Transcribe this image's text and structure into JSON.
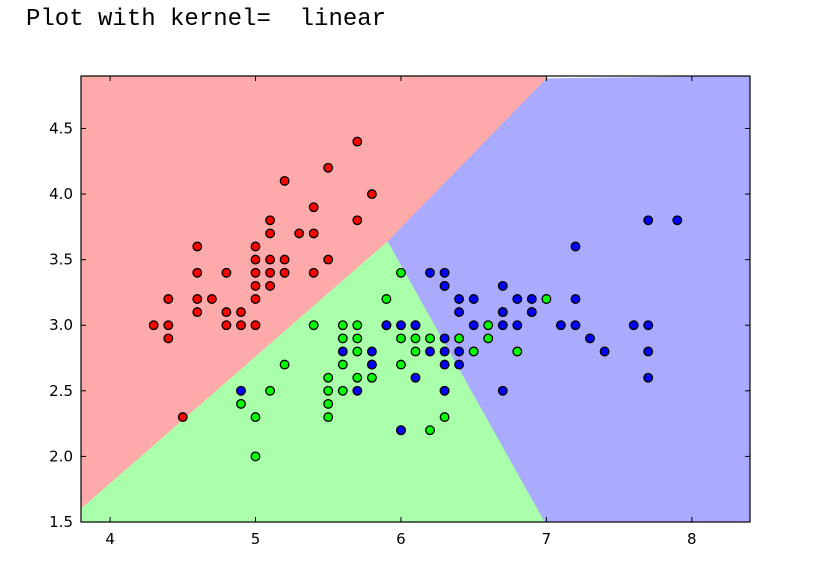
{
  "heading": "Plot with kernel=  linear",
  "chart_data": {
    "type": "scatter",
    "title": "",
    "xlabel": "",
    "ylabel": "",
    "xlim": [
      3.8,
      8.4
    ],
    "ylim": [
      1.5,
      4.9
    ],
    "xticks": [
      4,
      5,
      6,
      7,
      8
    ],
    "yticks": [
      1.5,
      2.0,
      2.5,
      3.0,
      3.5,
      4.0,
      4.5
    ],
    "xtick_labels": [
      "4",
      "5",
      "6",
      "7",
      "8"
    ],
    "ytick_labels": [
      "1.5",
      "2.0",
      "2.5",
      "3.0",
      "3.5",
      "4.0",
      "4.5"
    ],
    "grid": false,
    "legend": "none",
    "decision_regions": [
      {
        "class": 0,
        "color": "#ffaaaa"
      },
      {
        "class": 1,
        "color": "#aaffaa"
      },
      {
        "class": 2,
        "color": "#aaaaff"
      }
    ],
    "decision_boundaries": {
      "red_green": [
        [
          3.8,
          1.6
        ],
        [
          5.91,
          3.64
        ]
      ],
      "green_blue": [
        [
          5.91,
          3.64
        ],
        [
          6.99,
          1.5
        ]
      ],
      "red_blue": [
        [
          5.91,
          3.64
        ],
        [
          7.0,
          4.88
        ]
      ]
    },
    "series": [
      {
        "color": "#ff0000",
        "points": [
          [
            4.3,
            3.0
          ],
          [
            4.4,
            2.9
          ],
          [
            4.4,
            3.0
          ],
          [
            4.4,
            3.2
          ],
          [
            4.5,
            2.3
          ],
          [
            4.6,
            3.1
          ],
          [
            4.6,
            3.2
          ],
          [
            4.6,
            3.4
          ],
          [
            4.6,
            3.6
          ],
          [
            4.7,
            3.2
          ],
          [
            4.8,
            3.0
          ],
          [
            4.8,
            3.1
          ],
          [
            4.8,
            3.4
          ],
          [
            4.9,
            3.0
          ],
          [
            4.9,
            3.1
          ],
          [
            5.0,
            3.0
          ],
          [
            5.0,
            3.2
          ],
          [
            5.0,
            3.3
          ],
          [
            5.0,
            3.4
          ],
          [
            5.0,
            3.5
          ],
          [
            5.0,
            3.6
          ],
          [
            5.1,
            3.3
          ],
          [
            5.1,
            3.4
          ],
          [
            5.1,
            3.5
          ],
          [
            5.1,
            3.7
          ],
          [
            5.1,
            3.8
          ],
          [
            5.2,
            3.4
          ],
          [
            5.2,
            3.5
          ],
          [
            5.2,
            4.1
          ],
          [
            5.3,
            3.7
          ],
          [
            5.4,
            3.4
          ],
          [
            5.4,
            3.7
          ],
          [
            5.4,
            3.9
          ],
          [
            5.5,
            3.5
          ],
          [
            5.5,
            4.2
          ],
          [
            5.7,
            3.8
          ],
          [
            5.7,
            4.4
          ],
          [
            5.8,
            4.0
          ]
        ]
      },
      {
        "color": "#00ff00",
        "points": [
          [
            4.9,
            2.4
          ],
          [
            5.0,
            2.0
          ],
          [
            5.0,
            2.3
          ],
          [
            5.1,
            2.5
          ],
          [
            5.2,
            2.7
          ],
          [
            5.4,
            3.0
          ],
          [
            5.5,
            2.3
          ],
          [
            5.5,
            2.4
          ],
          [
            5.5,
            2.5
          ],
          [
            5.5,
            2.6
          ],
          [
            5.6,
            2.5
          ],
          [
            5.6,
            2.7
          ],
          [
            5.6,
            2.9
          ],
          [
            5.6,
            3.0
          ],
          [
            5.7,
            2.6
          ],
          [
            5.7,
            2.8
          ],
          [
            5.7,
            2.9
          ],
          [
            5.7,
            3.0
          ],
          [
            5.8,
            2.6
          ],
          [
            5.8,
            2.7
          ],
          [
            5.9,
            3.0
          ],
          [
            5.9,
            3.2
          ],
          [
            6.0,
            2.2
          ],
          [
            6.0,
            2.7
          ],
          [
            6.0,
            2.9
          ],
          [
            6.0,
            3.4
          ],
          [
            6.1,
            2.8
          ],
          [
            6.1,
            2.9
          ],
          [
            6.1,
            3.0
          ],
          [
            6.2,
            2.2
          ],
          [
            6.2,
            2.9
          ],
          [
            6.3,
            2.3
          ],
          [
            6.3,
            2.5
          ],
          [
            6.3,
            3.3
          ],
          [
            6.4,
            2.9
          ],
          [
            6.5,
            2.8
          ],
          [
            6.6,
            2.9
          ],
          [
            6.6,
            3.0
          ],
          [
            6.7,
            3.1
          ],
          [
            6.8,
            2.8
          ],
          [
            6.9,
            3.1
          ],
          [
            7.0,
            3.2
          ]
        ]
      },
      {
        "color": "#0000ff",
        "points": [
          [
            4.9,
            2.5
          ],
          [
            5.6,
            2.8
          ],
          [
            5.7,
            2.5
          ],
          [
            5.8,
            2.7
          ],
          [
            5.8,
            2.8
          ],
          [
            5.9,
            3.0
          ],
          [
            6.0,
            2.2
          ],
          [
            6.0,
            3.0
          ],
          [
            6.1,
            2.6
          ],
          [
            6.1,
            3.0
          ],
          [
            6.2,
            2.8
          ],
          [
            6.2,
            3.4
          ],
          [
            6.3,
            2.5
          ],
          [
            6.3,
            2.7
          ],
          [
            6.3,
            2.8
          ],
          [
            6.3,
            2.9
          ],
          [
            6.3,
            3.3
          ],
          [
            6.3,
            3.4
          ],
          [
            6.4,
            2.7
          ],
          [
            6.4,
            2.8
          ],
          [
            6.4,
            3.1
          ],
          [
            6.4,
            3.2
          ],
          [
            6.5,
            3.0
          ],
          [
            6.5,
            3.2
          ],
          [
            6.7,
            2.5
          ],
          [
            6.7,
            3.0
          ],
          [
            6.7,
            3.1
          ],
          [
            6.7,
            3.3
          ],
          [
            6.8,
            3.0
          ],
          [
            6.8,
            3.2
          ],
          [
            6.9,
            3.1
          ],
          [
            6.9,
            3.2
          ],
          [
            7.1,
            3.0
          ],
          [
            7.2,
            3.0
          ],
          [
            7.2,
            3.2
          ],
          [
            7.2,
            3.6
          ],
          [
            7.3,
            2.9
          ],
          [
            7.4,
            2.8
          ],
          [
            7.6,
            3.0
          ],
          [
            7.7,
            2.6
          ],
          [
            7.7,
            2.8
          ],
          [
            7.7,
            3.0
          ],
          [
            7.7,
            3.8
          ],
          [
            7.9,
            3.8
          ]
        ]
      }
    ]
  }
}
